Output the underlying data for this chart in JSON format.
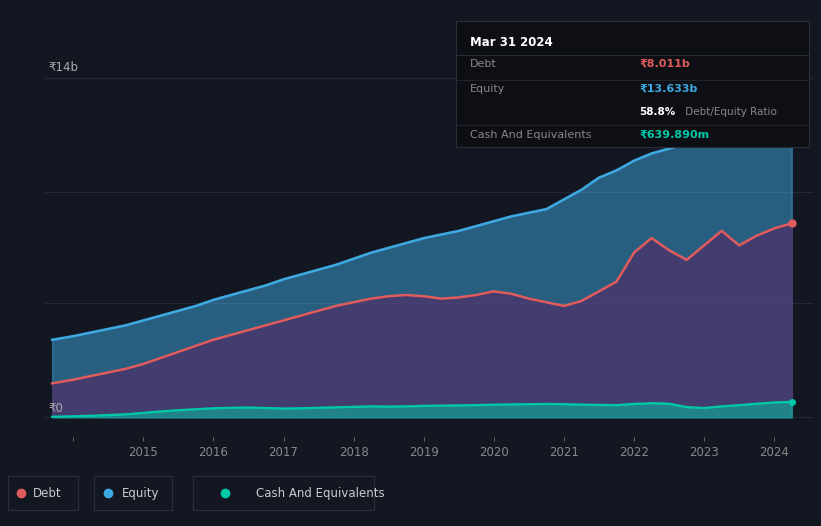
{
  "bg_color": "#131722",
  "plot_bg_color": "#131722",
  "grid_color": "#252a38",
  "title_text": "Mar 31 2024",
  "debt_label": "Debt",
  "equity_label": "Equity",
  "cash_label": "Cash And Equivalents",
  "debt_value": "₹8.011b",
  "equity_value": "₹13.633b",
  "ratio_bold": "58.8%",
  "ratio_rest": " Debt/Equity Ratio",
  "cash_value": "₹639.890m",
  "debt_color": "#e05c5c",
  "equity_color": "#3ea8e0",
  "cash_color": "#00c9a7",
  "ylabel_14b": "₹14b",
  "ylabel_0": "₹0",
  "xlim_start": 2013.6,
  "xlim_end": 2024.55,
  "ylim_min": -800,
  "ylim_max": 15500,
  "xticks": [
    2014,
    2015,
    2016,
    2017,
    2018,
    2019,
    2020,
    2021,
    2022,
    2023,
    2024
  ],
  "xtick_labels": [
    "",
    "2015",
    "2016",
    "2017",
    "2018",
    "2019",
    "2020",
    "2021",
    "2022",
    "2023",
    "2024"
  ],
  "equity_data": [
    [
      2013.7,
      3200
    ],
    [
      2014.0,
      3350
    ],
    [
      2014.25,
      3500
    ],
    [
      2014.5,
      3650
    ],
    [
      2014.75,
      3800
    ],
    [
      2015.0,
      4000
    ],
    [
      2015.25,
      4200
    ],
    [
      2015.5,
      4400
    ],
    [
      2015.75,
      4600
    ],
    [
      2016.0,
      4850
    ],
    [
      2016.25,
      5050
    ],
    [
      2016.5,
      5250
    ],
    [
      2016.75,
      5450
    ],
    [
      2017.0,
      5700
    ],
    [
      2017.25,
      5900
    ],
    [
      2017.5,
      6100
    ],
    [
      2017.75,
      6300
    ],
    [
      2018.0,
      6550
    ],
    [
      2018.25,
      6800
    ],
    [
      2018.5,
      7000
    ],
    [
      2018.75,
      7200
    ],
    [
      2019.0,
      7400
    ],
    [
      2019.25,
      7550
    ],
    [
      2019.5,
      7700
    ],
    [
      2019.75,
      7900
    ],
    [
      2020.0,
      8100
    ],
    [
      2020.25,
      8300
    ],
    [
      2020.5,
      8450
    ],
    [
      2020.75,
      8600
    ],
    [
      2021.0,
      9000
    ],
    [
      2021.25,
      9400
    ],
    [
      2021.5,
      9900
    ],
    [
      2021.75,
      10200
    ],
    [
      2022.0,
      10600
    ],
    [
      2022.25,
      10900
    ],
    [
      2022.5,
      11100
    ],
    [
      2022.75,
      11300
    ],
    [
      2023.0,
      11550
    ],
    [
      2023.25,
      11800
    ],
    [
      2023.5,
      12050
    ],
    [
      2023.75,
      12400
    ],
    [
      2024.0,
      12900
    ],
    [
      2024.25,
      13633
    ]
  ],
  "debt_data": [
    [
      2013.7,
      1400
    ],
    [
      2014.0,
      1550
    ],
    [
      2014.25,
      1700
    ],
    [
      2014.5,
      1850
    ],
    [
      2014.75,
      2000
    ],
    [
      2015.0,
      2200
    ],
    [
      2015.25,
      2450
    ],
    [
      2015.5,
      2700
    ],
    [
      2015.75,
      2950
    ],
    [
      2016.0,
      3200
    ],
    [
      2016.25,
      3400
    ],
    [
      2016.5,
      3600
    ],
    [
      2016.75,
      3800
    ],
    [
      2017.0,
      4000
    ],
    [
      2017.25,
      4200
    ],
    [
      2017.5,
      4400
    ],
    [
      2017.75,
      4600
    ],
    [
      2018.0,
      4750
    ],
    [
      2018.25,
      4900
    ],
    [
      2018.5,
      5000
    ],
    [
      2018.75,
      5050
    ],
    [
      2019.0,
      5000
    ],
    [
      2019.25,
      4900
    ],
    [
      2019.5,
      4950
    ],
    [
      2019.75,
      5050
    ],
    [
      2020.0,
      5200
    ],
    [
      2020.25,
      5100
    ],
    [
      2020.5,
      4900
    ],
    [
      2020.75,
      4750
    ],
    [
      2021.0,
      4600
    ],
    [
      2021.25,
      4800
    ],
    [
      2021.5,
      5200
    ],
    [
      2021.75,
      5600
    ],
    [
      2022.0,
      6800
    ],
    [
      2022.25,
      7400
    ],
    [
      2022.5,
      6900
    ],
    [
      2022.75,
      6500
    ],
    [
      2023.0,
      7100
    ],
    [
      2023.25,
      7700
    ],
    [
      2023.5,
      7100
    ],
    [
      2023.75,
      7500
    ],
    [
      2024.0,
      7800
    ],
    [
      2024.25,
      8011
    ]
  ],
  "cash_data": [
    [
      2013.7,
      20
    ],
    [
      2014.0,
      40
    ],
    [
      2014.25,
      60
    ],
    [
      2014.5,
      90
    ],
    [
      2014.75,
      120
    ],
    [
      2015.0,
      180
    ],
    [
      2015.25,
      240
    ],
    [
      2015.5,
      290
    ],
    [
      2015.75,
      330
    ],
    [
      2016.0,
      370
    ],
    [
      2016.25,
      390
    ],
    [
      2016.5,
      400
    ],
    [
      2016.75,
      380
    ],
    [
      2017.0,
      360
    ],
    [
      2017.25,
      370
    ],
    [
      2017.5,
      390
    ],
    [
      2017.75,
      410
    ],
    [
      2018.0,
      430
    ],
    [
      2018.25,
      450
    ],
    [
      2018.5,
      440
    ],
    [
      2018.75,
      450
    ],
    [
      2019.0,
      470
    ],
    [
      2019.25,
      480
    ],
    [
      2019.5,
      490
    ],
    [
      2019.75,
      500
    ],
    [
      2020.0,
      520
    ],
    [
      2020.25,
      530
    ],
    [
      2020.5,
      540
    ],
    [
      2020.75,
      550
    ],
    [
      2021.0,
      540
    ],
    [
      2021.25,
      520
    ],
    [
      2021.5,
      510
    ],
    [
      2021.75,
      500
    ],
    [
      2022.0,
      550
    ],
    [
      2022.25,
      580
    ],
    [
      2022.5,
      560
    ],
    [
      2022.75,
      420
    ],
    [
      2023.0,
      380
    ],
    [
      2023.25,
      450
    ],
    [
      2023.5,
      500
    ],
    [
      2023.75,
      560
    ],
    [
      2024.0,
      610
    ],
    [
      2024.25,
      640
    ]
  ]
}
